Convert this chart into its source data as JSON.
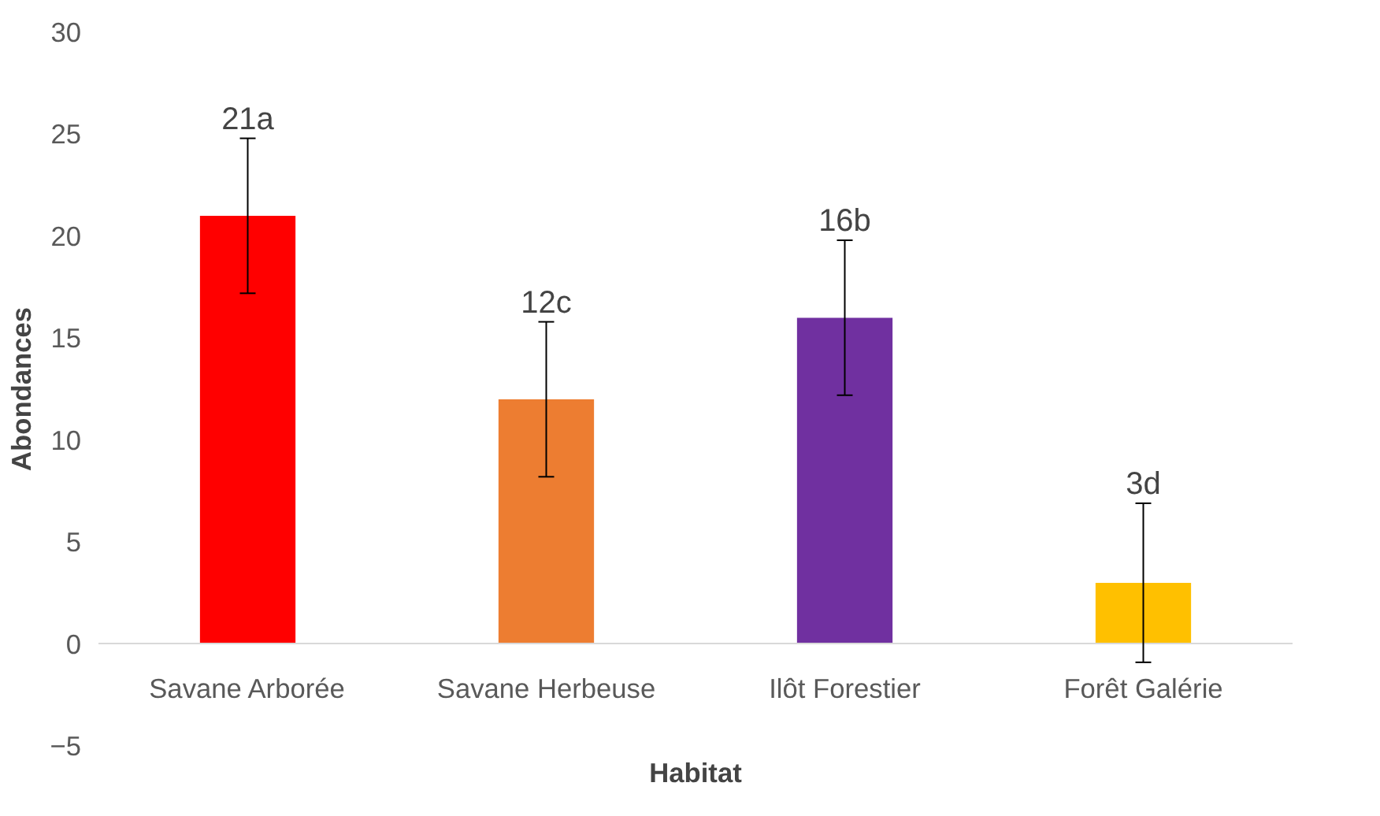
{
  "chart_data": {
    "type": "bar",
    "xlabel": "Habitat",
    "ylabel": "Abondances",
    "categories": [
      "Savane Arborée",
      "Savane Herbeuse",
      "Ilôt Forestier",
      "Forêt Galérie"
    ],
    "values": [
      21,
      12,
      16,
      3
    ],
    "colors": [
      "#ff0000",
      "#ed7d31",
      "#7030a0",
      "#ffc000"
    ],
    "errors": [
      3.8,
      3.8,
      3.8,
      3.9
    ],
    "value_labels": [
      "21a",
      "12c",
      "16b",
      "3d"
    ],
    "ylim": [
      -5,
      30
    ],
    "yticks": [
      -5,
      0,
      5,
      10,
      15,
      20,
      25,
      30
    ],
    "grid": false
  }
}
